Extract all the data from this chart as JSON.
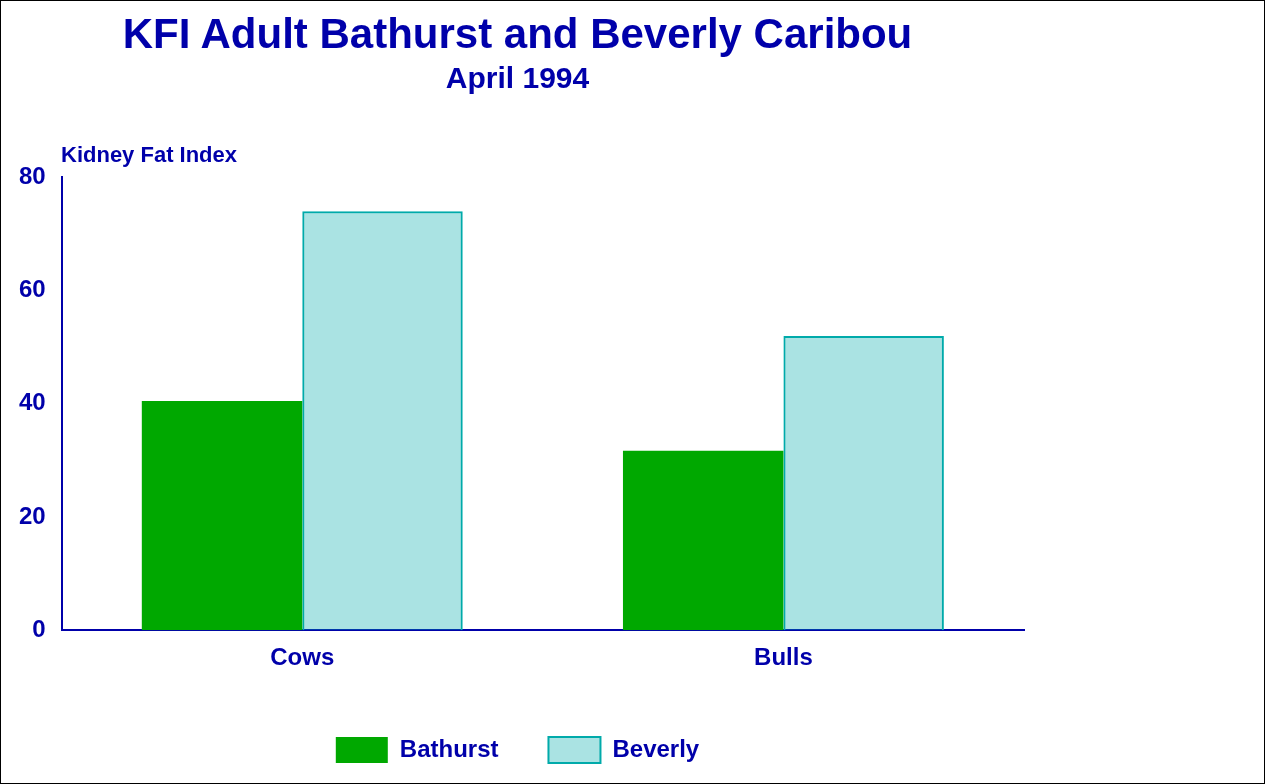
{
  "chart_data": {
    "type": "bar",
    "title": "KFI Adult Bathurst and Beverly Caribou",
    "subtitle": "April 1994",
    "ylabel": "Kidney Fat Index",
    "categories": [
      "Cows",
      "Bulls"
    ],
    "series": [
      {
        "name": "Bathurst",
        "color": "#00a800",
        "values": [
          40.5,
          31.7
        ]
      },
      {
        "name": "Beverly",
        "color": "#00aaaa",
        "values": [
          74,
          52
        ]
      }
    ],
    "ylim": [
      0,
      80
    ],
    "yticks": [
      0,
      20,
      40,
      60,
      80
    ],
    "grid": false,
    "legend": "bottom"
  }
}
